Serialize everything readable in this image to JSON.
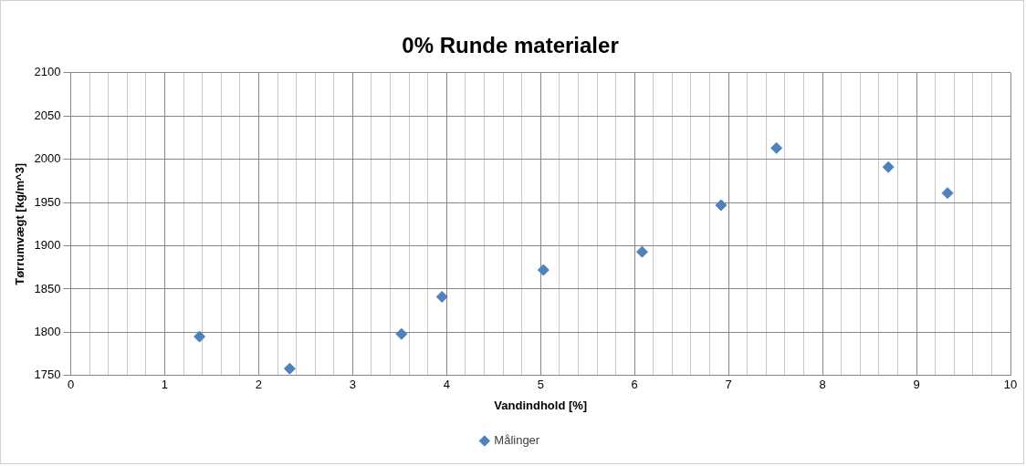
{
  "chart_data": {
    "type": "scatter",
    "title": "0% Runde materialer",
    "xlabel": "Vandindhold [%]",
    "ylabel": "Tørrumvægt [kg/m^3]",
    "series": [
      {
        "name": "Målinger",
        "color": "#4f81bd",
        "x": [
          1.37,
          2.33,
          3.52,
          3.95,
          5.03,
          6.08,
          6.92,
          7.51,
          8.7,
          9.33
        ],
        "values": [
          1795,
          1758,
          1798,
          1841,
          1872,
          1893,
          1947,
          2013,
          1991,
          1961
        ]
      }
    ],
    "xlim": [
      0,
      10
    ],
    "ylim": [
      1750,
      2100
    ],
    "xticks": [
      0,
      {
        "value": 0.2,
        "label": null
      },
      {
        "value": 0.4,
        "label": null
      },
      {
        "value": 0.6,
        "label": null
      },
      {
        "value": 0.8,
        "label": null
      },
      1,
      {
        "value": 1.2,
        "label": null
      },
      {
        "value": 1.4,
        "label": null
      },
      {
        "value": 1.6,
        "label": null
      },
      {
        "value": 1.8,
        "label": null
      },
      2,
      {
        "value": 2.2,
        "label": null
      },
      {
        "value": 2.4,
        "label": null
      },
      {
        "value": 2.6,
        "label": null
      },
      {
        "value": 2.8,
        "label": null
      },
      3,
      {
        "value": 3.2,
        "label": null
      },
      {
        "value": 3.4,
        "label": null
      },
      {
        "value": 3.6,
        "label": null
      },
      {
        "value": 3.8,
        "label": null
      },
      4,
      {
        "value": 4.2,
        "label": null
      },
      {
        "value": 4.4,
        "label": null
      },
      {
        "value": 4.6,
        "label": null
      },
      {
        "value": 4.8,
        "label": null
      },
      5,
      {
        "value": 5.2,
        "label": null
      },
      {
        "value": 5.4,
        "label": null
      },
      {
        "value": 5.6,
        "label": null
      },
      {
        "value": 5.8,
        "label": null
      },
      6,
      {
        "value": 6.2,
        "label": null
      },
      {
        "value": 6.4,
        "label": null
      },
      {
        "value": 6.6,
        "label": null
      },
      {
        "value": 6.8,
        "label": null
      },
      7,
      {
        "value": 7.2,
        "label": null
      },
      {
        "value": 7.4,
        "label": null
      },
      {
        "value": 7.6,
        "label": null
      },
      {
        "value": 7.8,
        "label": null
      },
      8,
      {
        "value": 8.2,
        "label": null
      },
      {
        "value": 8.4,
        "label": null
      },
      {
        "value": 8.6,
        "label": null
      },
      {
        "value": 8.8,
        "label": null
      },
      9,
      {
        "value": 9.2,
        "label": null
      },
      {
        "value": 9.4,
        "label": null
      },
      {
        "value": 9.6,
        "label": null
      },
      {
        "value": 9.8,
        "label": null
      },
      10
    ],
    "yticks": [
      1750,
      1800,
      1850,
      1900,
      1950,
      2000,
      2050,
      2100
    ],
    "grid": true,
    "legend": "bottom",
    "marker": "diamond"
  }
}
